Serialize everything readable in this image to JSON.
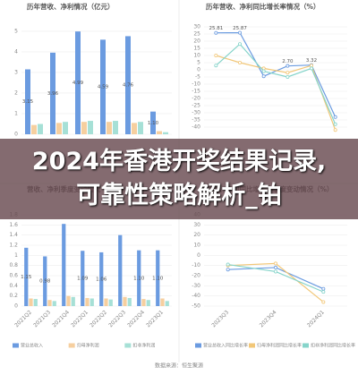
{
  "banner": "2024年香港开奖结果记录,可靠性策略解析_铂",
  "source": "数据来源：恒生聚源",
  "chart_data": [
    {
      "type": "bar",
      "title": "历年营收、净利情况（亿元）",
      "categories": [
        null,
        null,
        null,
        null,
        null,
        null
      ],
      "ylim": [
        0,
        5.3
      ],
      "yticks": [
        0,
        1,
        2,
        3,
        4,
        5
      ],
      "grid": true,
      "series": [
        {
          "color": "#6b9be0",
          "values": [
            3.15,
            3.96,
            4.99,
            4.59,
            4.76,
            1.1
          ],
          "value_labels": [
            "3.15",
            "3.96",
            "4.99",
            "4.59",
            "4.76",
            "1.10"
          ]
        },
        {
          "color": "#f6cf9f",
          "values": [
            0.45,
            0.55,
            0.6,
            0.6,
            0.55,
            0.15
          ]
        },
        {
          "color": "#a6e0d6",
          "values": [
            0.5,
            0.6,
            0.65,
            0.65,
            0.6,
            0.1
          ]
        }
      ]
    },
    {
      "type": "line",
      "title": "历年营收、净利同比增长率情况（%）",
      "categories": [
        null,
        null,
        null,
        null,
        null,
        null
      ],
      "ylim": [
        -45,
        30
      ],
      "yticks": [
        -40,
        -35,
        -30,
        -25,
        -20,
        -15,
        -10,
        -5,
        0,
        5,
        10,
        15,
        20,
        25,
        30
      ],
      "grid": true,
      "series": [
        {
          "color": "#6b9be0",
          "values": [
            25.81,
            25.87,
            -4.5,
            2.7,
            3.32,
            -33
          ],
          "value_labels": [
            "25.81",
            "25.87",
            null,
            "2.70",
            "3.32",
            null
          ]
        },
        {
          "color": "#f2c778",
          "values": [
            10,
            5,
            1,
            -2,
            3,
            -42
          ]
        },
        {
          "color": "#86d4ca",
          "values": [
            3,
            18,
            -1,
            -5,
            1,
            -38
          ]
        }
      ]
    },
    {
      "type": "bar",
      "title": "营收、净利季度变动情况（亿元）",
      "categories": [
        "2021Q2",
        "2021Q3",
        "2021Q4",
        "2022Q1",
        "2022Q2",
        "2022Q3",
        "2022Q4",
        "2023Q1"
      ],
      "ylim": [
        0,
        1.8
      ],
      "yticks": [
        0,
        0.2,
        0.4,
        0.6,
        0.8,
        1,
        1.2,
        1.4,
        1.6,
        1.8
      ],
      "grid": true,
      "legend": "bottom",
      "series": [
        {
          "name": "营业总收入",
          "color": "#6b9be0",
          "values": [
            1.15,
            0.98,
            1.62,
            1.09,
            1.06,
            1.4,
            1.1,
            1.1
          ],
          "value_labels": [
            "1.15",
            "0.98",
            null,
            "1.09",
            "1.06",
            null,
            "1.10",
            "1.10"
          ]
        },
        {
          "name": "归母净利润",
          "color": "#f6cf9f",
          "values": [
            0.15,
            0.12,
            0.2,
            0.16,
            0.15,
            0.18,
            0.14,
            0.15
          ]
        },
        {
          "name": "扣非净利润",
          "color": "#a6e0d6",
          "values": [
            0.14,
            0.1,
            0.18,
            0.15,
            0.13,
            0.16,
            0.12,
            0.1
          ]
        }
      ]
    },
    {
      "type": "line",
      "title": "营收、净利同比增长率季度变动情况（%）",
      "categories": [
        "2023Q3",
        "2023Q4",
        "2024Q1"
      ],
      "ylim": [
        -50,
        40
      ],
      "yticks": [
        -50,
        -40,
        -30,
        -20,
        -10,
        0,
        10,
        20,
        30,
        40
      ],
      "grid": true,
      "legend": "bottom",
      "series": [
        {
          "name": "营业总收入同比增长率",
          "color": "#6b9be0",
          "values": [
            -14,
            -12,
            -33
          ]
        },
        {
          "name": "归母净利润同比增长率",
          "color": "#f2c778",
          "values": [
            -10,
            -8,
            -46
          ]
        },
        {
          "name": "扣非净利润同比增长率",
          "color": "#86d4ca",
          "values": [
            -9,
            -16,
            -36
          ]
        }
      ]
    }
  ]
}
